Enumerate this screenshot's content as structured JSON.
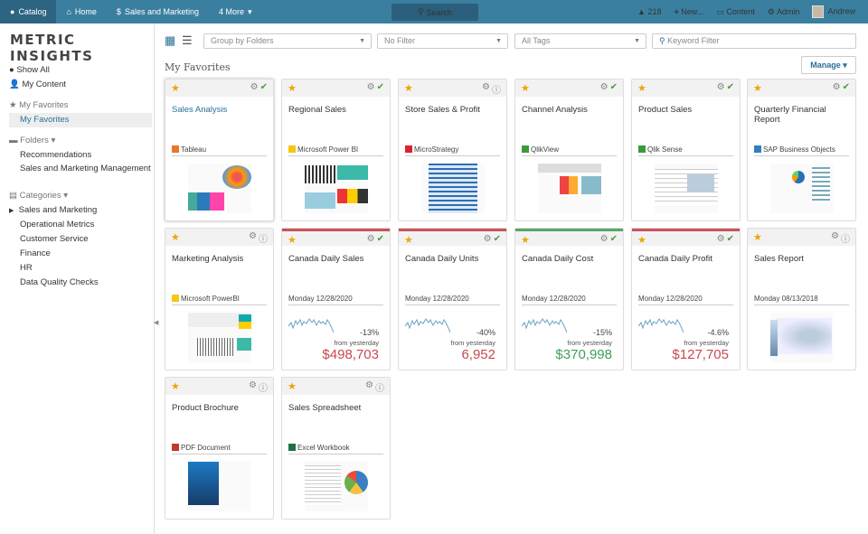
{
  "topbar": {
    "catalog": "Catalog",
    "home": "Home",
    "sales": "Sales and Marketing",
    "more": "4 More",
    "search": "Search",
    "alerts": "218",
    "new": "New...",
    "content": "Content",
    "admin": "Admin",
    "user": "Andrew"
  },
  "brand": {
    "logo": "METRIC INSIGHTS",
    "accent": "#3b7fa0"
  },
  "sidebar": {
    "show_all": "Show All",
    "my_content": "My Content",
    "fav_head": "My Favorites",
    "fav": "My Favorites",
    "folders": "Folders",
    "folder_items": [
      "Recommendations",
      "Sales and Marketing Management"
    ],
    "categories": "Categories",
    "category_items": [
      "Sales and Marketing",
      "Operational Metrics",
      "Customer Service",
      "Finance",
      "HR",
      "Data Quality Checks"
    ]
  },
  "filters": {
    "group": "Group by Folders",
    "filter": "No Filter",
    "tags": "All Tags",
    "keyword_placeholder": "Keyword Filter"
  },
  "main": {
    "title": "My Favorites",
    "manage": "Manage"
  },
  "cards": [
    {
      "title": "Sales Analysis",
      "source": "Tableau",
      "status": "ok"
    },
    {
      "title": "Regional Sales",
      "source": "Microsoft Power BI",
      "status": "ok"
    },
    {
      "title": "Store Sales & Profit",
      "source": "MicroStrategy",
      "status": "info"
    },
    {
      "title": "Channel Analysis",
      "source": "QlikView",
      "status": "ok"
    },
    {
      "title": "Product Sales",
      "source": "Qlik Sense",
      "status": "ok"
    },
    {
      "title": "Quarterly Financial Report",
      "source": "SAP Business Objects",
      "status": "ok"
    },
    {
      "title": "Marketing Analysis",
      "source": "Microsoft PowerBI",
      "status": "info"
    },
    {
      "title": "Canada Daily Sales",
      "date": "Monday 12/28/2020",
      "change": "-13%",
      "from": "from yesterday",
      "value": "$498,703",
      "status": "ok"
    },
    {
      "title": "Canada Daily Units",
      "date": "Monday 12/28/2020",
      "change": "-40%",
      "from": "from yesterday",
      "value": "6,952",
      "status": "ok"
    },
    {
      "title": "Canada Daily Cost",
      "date": "Monday 12/28/2020",
      "change": "-15%",
      "from": "from yesterday",
      "value": "$370,998",
      "status": "ok"
    },
    {
      "title": "Canada Daily Profit",
      "date": "Monday 12/28/2020",
      "change": "-4.6%",
      "from": "from yesterday",
      "value": "$127,705",
      "status": "ok"
    },
    {
      "title": "Sales Report",
      "date": "Monday 08/13/2018",
      "status": "info"
    },
    {
      "title": "Product Brochure",
      "source": "PDF Document",
      "status": "info"
    },
    {
      "title": "Sales Spreadsheet",
      "source": "Excel Workbook",
      "status": "info"
    }
  ]
}
